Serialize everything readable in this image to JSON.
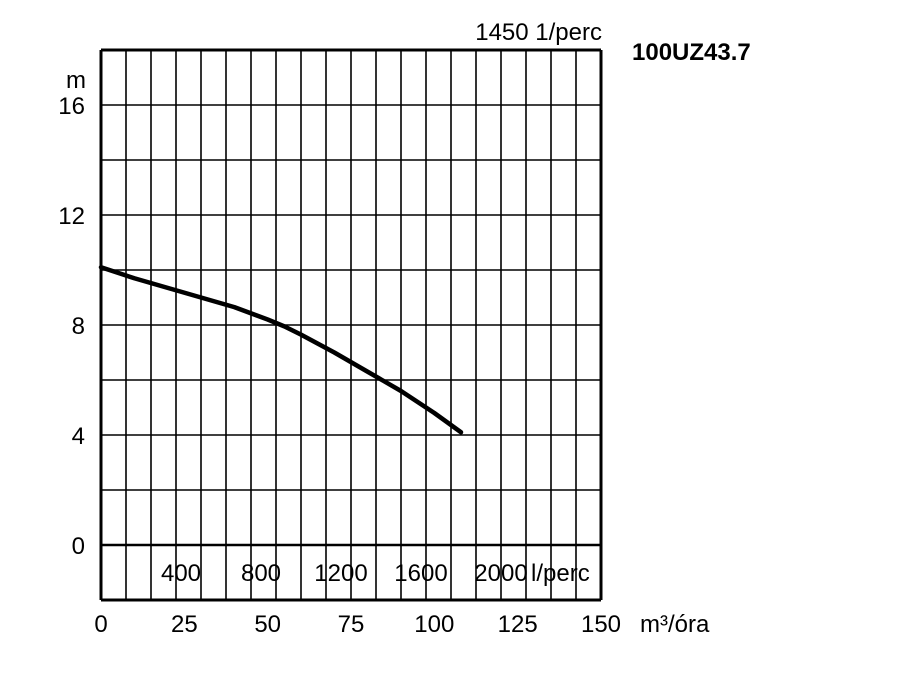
{
  "chart_data": {
    "type": "line",
    "title": "100UZ43.7",
    "speed_label": "1450 1/perc",
    "y_unit": "m",
    "x_unit": "m³/óra",
    "secondary_x_unit": "l/perc",
    "xlim": [
      0,
      150
    ],
    "ylim": [
      -2,
      18
    ],
    "x_ticks": [
      0,
      25,
      50,
      75,
      100,
      125,
      150
    ],
    "y_ticks": [
      0,
      4,
      8,
      12,
      16
    ],
    "secondary_x_ticks": [
      {
        "q": 24,
        "label": "400"
      },
      {
        "q": 48,
        "label": "800"
      },
      {
        "q": 72,
        "label": "1200"
      },
      {
        "q": 96,
        "label": "1600"
      },
      {
        "q": 120,
        "label": "2000"
      }
    ],
    "grid": true,
    "series": [
      {
        "x": [
          0,
          10,
          20,
          30,
          40,
          50,
          55,
          60,
          70,
          80,
          90,
          100,
          108
        ],
        "y": [
          10.1,
          9.7,
          9.35,
          9.0,
          8.65,
          8.2,
          7.95,
          7.65,
          7.0,
          6.3,
          5.6,
          4.8,
          4.1
        ]
      }
    ]
  }
}
